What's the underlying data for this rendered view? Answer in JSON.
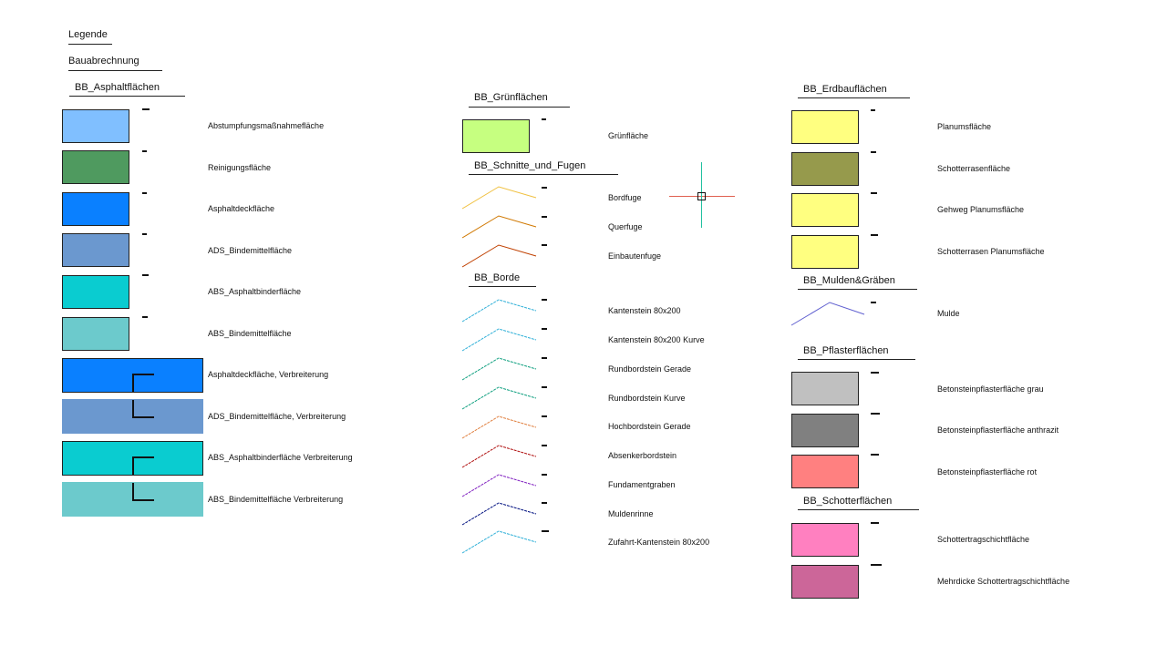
{
  "title": "Legende",
  "subtitle": "Bauabrechnung",
  "groups": {
    "asphalt": {
      "title": "BB_Asphaltflächen",
      "items": [
        {
          "label": "Abstumpfungsmaßnahmefläche",
          "color": "#80bfff"
        },
        {
          "label": "Reinigungsfläche",
          "color": "#4f9a5f"
        },
        {
          "label": "Asphaltdeckfläche",
          "color": "#0a80ff"
        },
        {
          "label": "ADS_Bindemittelfläche",
          "color": "#6b98cf"
        },
        {
          "label": "ABS_Asphaltbinderfläche",
          "color": "#0accd0"
        },
        {
          "label": "ABS_Bindemittelfläche",
          "color": "#6ccacc"
        },
        {
          "label": "Asphaltdeckfläche, Verbreiterung",
          "color": "#0a80ff"
        },
        {
          "label": "ADS_Bindemittelfläche, Verbreiterung",
          "color": "#6b98cf"
        },
        {
          "label": "ABS_Asphaltbinderfläche Verbreiterung",
          "color": "#0accd0"
        },
        {
          "label": "ABS_Bindemittelfläche Verbreiterung",
          "color": "#6ccacc"
        }
      ]
    },
    "gruen": {
      "title": "BB_Grünflächen",
      "items": [
        {
          "label": "Grünfläche",
          "color": "#c6ff80"
        }
      ]
    },
    "fugen": {
      "title": "BB_Schnitte_und_Fugen",
      "items": [
        {
          "label": "Bordfuge",
          "color": "#f0c040"
        },
        {
          "label": "Querfuge",
          "color": "#d07800"
        },
        {
          "label": "Einbautenfuge",
          "color": "#c04000"
        }
      ]
    },
    "borde": {
      "title": "BB_Borde",
      "items": [
        {
          "label": "Kantenstein 80x200",
          "color": "#30b0d8"
        },
        {
          "label": "Kantenstein 80x200 Kurve",
          "color": "#30b0d8"
        },
        {
          "label": "Rundbordstein Gerade",
          "color": "#10a080"
        },
        {
          "label": "Rundbordstein Kurve",
          "color": "#10a080"
        },
        {
          "label": "Hochbordstein Gerade",
          "color": "#e08040"
        },
        {
          "label": "Absenkerbordstein",
          "color": "#b01010"
        },
        {
          "label": "Fundamentgraben",
          "color": "#8020c0"
        },
        {
          "label": "Muldenrinne",
          "color": "#001080"
        },
        {
          "label": "Zufahrt-Kantenstein 80x200",
          "color": "#30b0d8"
        }
      ]
    },
    "erdbau": {
      "title": "BB_Erdbauflächen",
      "items": [
        {
          "label": "Planumsfläche",
          "color": "#ffff80"
        },
        {
          "label": "Schotterrasenfläche",
          "color": "#969a4c"
        },
        {
          "label": "Gehweg Planumsfläche",
          "color": "#ffff80"
        },
        {
          "label": "Schotterrasen Planumsfläche",
          "color": "#ffff80"
        }
      ]
    },
    "mulden": {
      "title": "BB_Mulden&Gräben",
      "items": [
        {
          "label": "Mulde",
          "color": "#6060d0"
        }
      ]
    },
    "pflaster": {
      "title": "BB_Pflasterflächen",
      "items": [
        {
          "label": "Betonsteinpflasterfläche grau",
          "color": "#c0c0c0"
        },
        {
          "label": "Betonsteinpflasterfläche anthrazit",
          "color": "#808080"
        },
        {
          "label": "Betonsteinpflasterfläche rot",
          "color": "#ff8080"
        }
      ]
    },
    "schotter": {
      "title": "BB_Schotterflächen",
      "items": [
        {
          "label": "Schottertragschichtfläche",
          "color": "#ff80c0"
        },
        {
          "label": "Mehrdicke Schottertragschichtfläche",
          "color": "#cc6699"
        }
      ]
    }
  },
  "cursor": {
    "h_color": "#e06050",
    "v_color": "#20c0a0"
  }
}
